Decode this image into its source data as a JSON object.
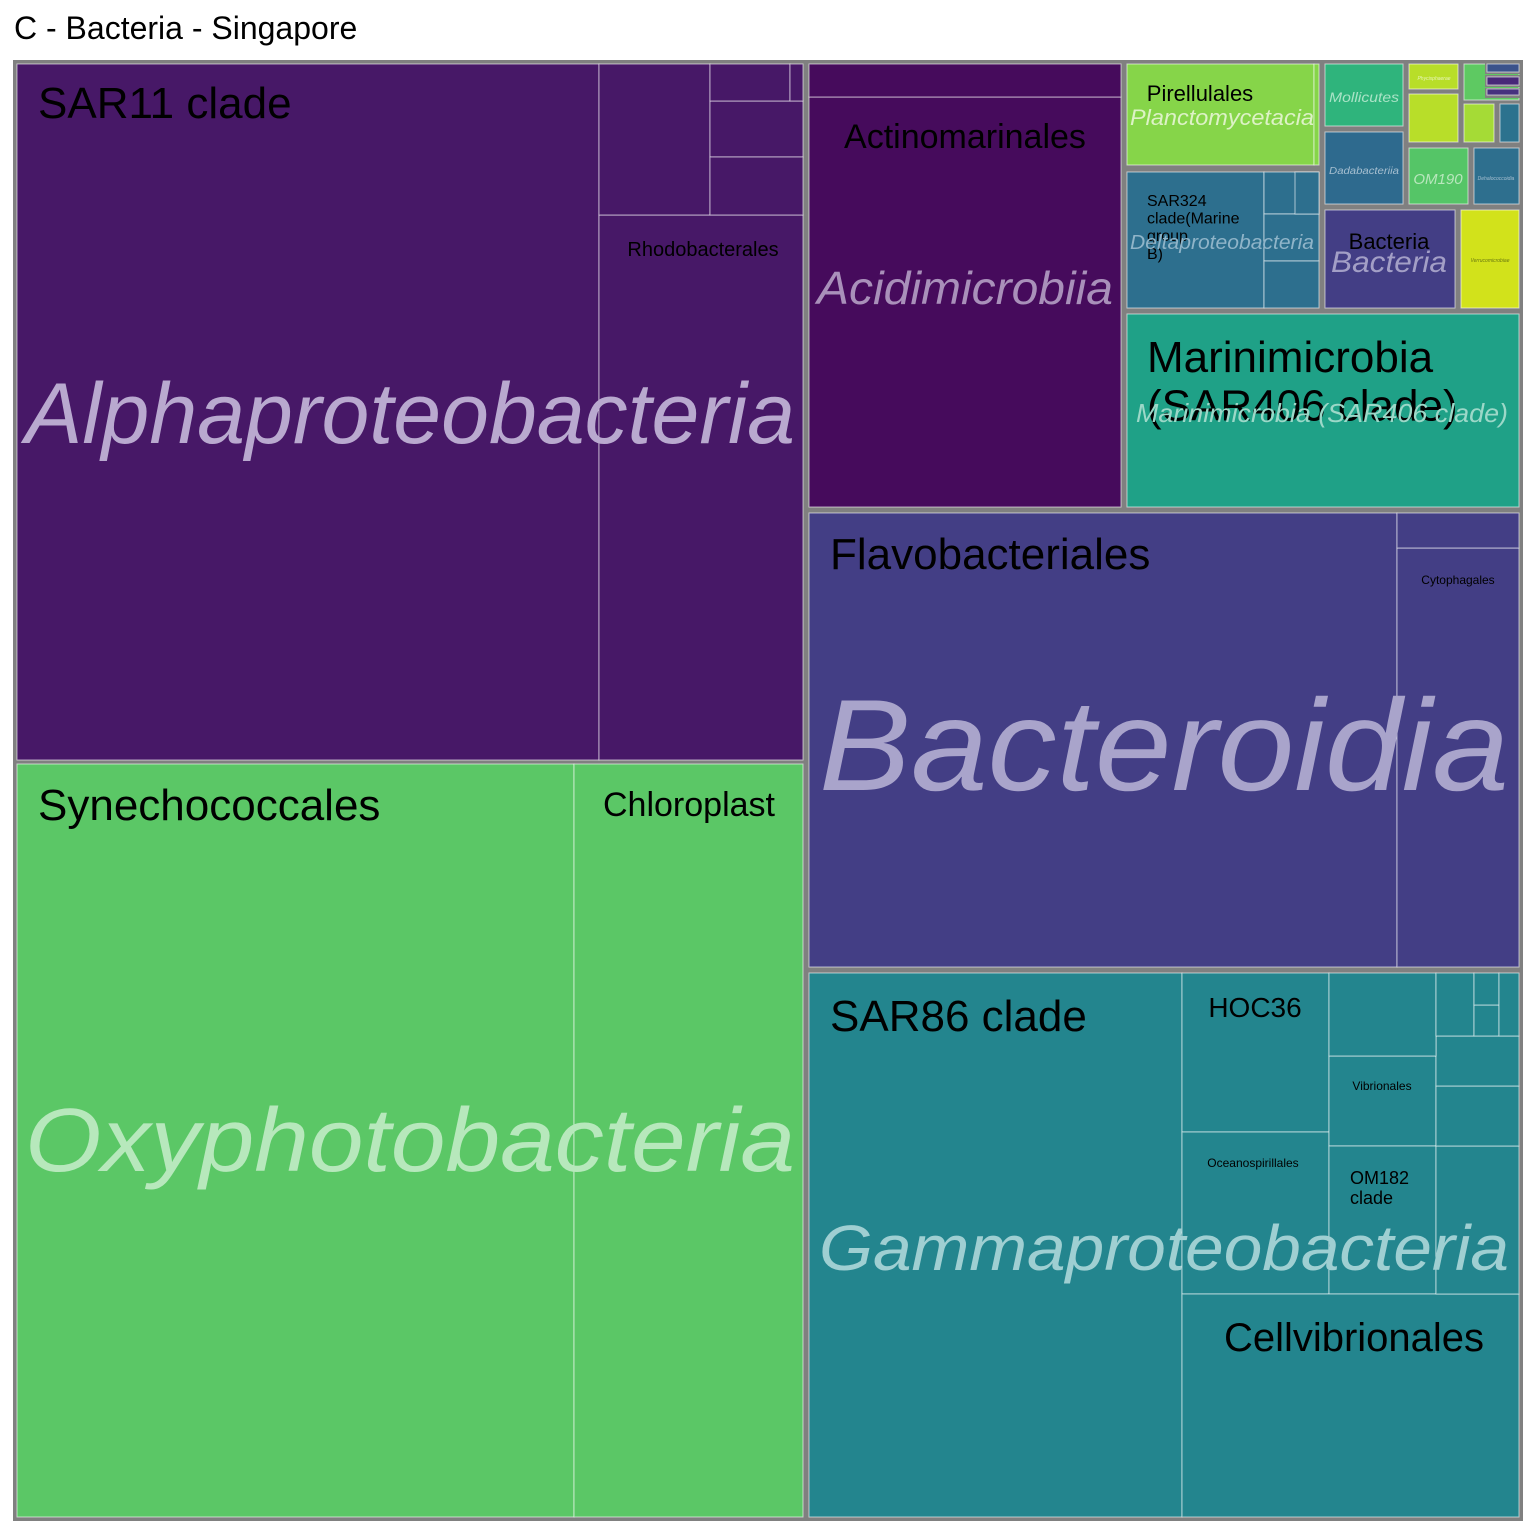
{
  "chart_data": {
    "type": "treemap",
    "title": "C - Bacteria - Singapore",
    "level1_label": "class",
    "level2_label": "order",
    "groups": [
      {
        "name": "Alphaproteobacteria",
        "color": "#471867",
        "children": [
          {
            "name": "SAR11 clade"
          },
          {
            "name": "Rhodobacterales"
          },
          {
            "name": ""
          },
          {
            "name": ""
          },
          {
            "name": ""
          },
          {
            "name": ""
          },
          {
            "name": ""
          }
        ]
      },
      {
        "name": "Oxyphotobacteria",
        "color": "#5BC766",
        "children": [
          {
            "name": "Synechococcales"
          },
          {
            "name": "Chloroplast"
          }
        ]
      },
      {
        "name": "Acidimicrobiia",
        "color": "#460B5C",
        "children": [
          {
            "name": "Actinomarinales"
          },
          {
            "name": ""
          }
        ]
      },
      {
        "name": "Planctomycetacia",
        "color": "#86D549",
        "children": [
          {
            "name": "Pirellulales"
          },
          {
            "name": ""
          }
        ]
      },
      {
        "name": "Mollicutes",
        "color": "#2FB47C",
        "children": [
          {
            "name": ""
          }
        ]
      },
      {
        "name": "Phycisphaerae",
        "color": "#B8DE29",
        "children": [
          {
            "name": ""
          }
        ]
      },
      {
        "name": "Deltaproteobacteria",
        "color": "#2D6F8E",
        "children": [
          {
            "name": "SAR324 clade(Marine group B)"
          },
          {
            "name": ""
          },
          {
            "name": ""
          },
          {
            "name": ""
          },
          {
            "name": ""
          }
        ]
      },
      {
        "name": "Dadabacteriia",
        "color": "#2E6A8E",
        "children": [
          {
            "name": ""
          }
        ]
      },
      {
        "name": "OM190",
        "color": "#55C567",
        "children": [
          {
            "name": ""
          }
        ]
      },
      {
        "name": "Dehalococcoidia",
        "color": "#2E6F8E",
        "children": [
          {
            "name": ""
          }
        ]
      },
      {
        "name": "Bacteria",
        "color": "#433E85",
        "children": [
          {
            "name": "Bacteria"
          }
        ]
      },
      {
        "name": "Verrucomicrobiae",
        "color": "#D2E21B",
        "children": [
          {
            "name": ""
          }
        ]
      },
      {
        "name": "Marinimicrobia (SAR406 clade)",
        "color": "#1FA187",
        "children": [
          {
            "name": "Marinimicrobia (SAR406 clade)"
          }
        ]
      },
      {
        "name": "Bacteroidia",
        "color": "#433E85",
        "children": [
          {
            "name": "Flavobacteriales"
          },
          {
            "name": "Cytophagales"
          },
          {
            "name": ""
          }
        ]
      },
      {
        "name": "Gammaproteobacteria",
        "color": "#23858E",
        "children": [
          {
            "name": "SAR86 clade"
          },
          {
            "name": "HOC36"
          },
          {
            "name": "Oceanospirillales"
          },
          {
            "name": "Vibrionales"
          },
          {
            "name": "OM182 clade"
          },
          {
            "name": "Cellvibrionales"
          },
          {
            "name": ""
          },
          {
            "name": ""
          },
          {
            "name": ""
          },
          {
            "name": ""
          },
          {
            "name": ""
          },
          {
            "name": ""
          },
          {
            "name": ""
          },
          {
            "name": ""
          }
        ]
      },
      {
        "name": "",
        "color": "#B8DE29",
        "children": [
          {
            "name": ""
          }
        ]
      },
      {
        "name": "",
        "color": "#5EC962",
        "children": [
          {
            "name": ""
          }
        ]
      },
      {
        "name": "",
        "color": "#3B528B",
        "children": [
          {
            "name": ""
          }
        ]
      },
      {
        "name": "",
        "color": "#482878",
        "children": [
          {
            "name": ""
          }
        ]
      },
      {
        "name": "",
        "color": "#A5DB36",
        "children": [
          {
            "name": ""
          }
        ]
      },
      {
        "name": "",
        "color": "#2C728E",
        "children": [
          {
            "name": ""
          }
        ]
      },
      {
        "name": "",
        "color": "#46327E",
        "children": [
          {
            "name": ""
          }
        ]
      }
    ]
  }
}
